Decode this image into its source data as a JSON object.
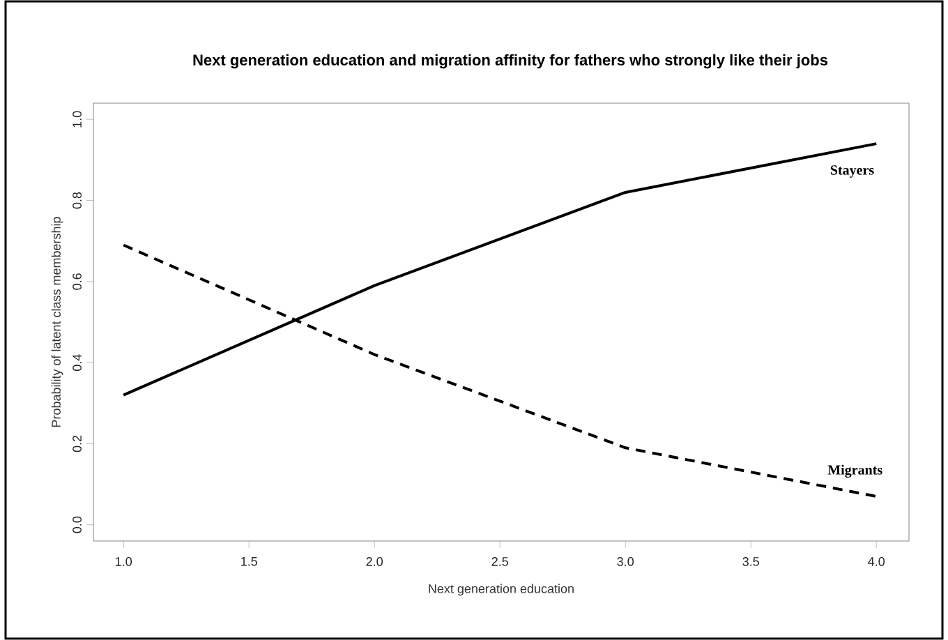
{
  "chart_data": {
    "type": "line",
    "title": "Next generation education and migration affinity for fathers who strongly like their jobs",
    "xlabel": "Next generation education",
    "ylabel": "Probability of latent class membership",
    "x": [
      1,
      2,
      3,
      4
    ],
    "series": [
      {
        "name": "Stayers",
        "color": "#000000",
        "line_style": "solid",
        "values": [
          0.32,
          0.59,
          0.82,
          0.94
        ]
      },
      {
        "name": "Migrants",
        "color": "#000000",
        "line_style": "dashed",
        "values": [
          0.69,
          0.42,
          0.19,
          0.07
        ]
      }
    ],
    "xlim": [
      0.88,
      4.13
    ],
    "ylim": [
      -0.04,
      1.04
    ],
    "xticks": [
      {
        "value": 1,
        "label": "1.0"
      },
      {
        "value": 1.5,
        "label": "1.5"
      },
      {
        "value": 2,
        "label": "2.0"
      },
      {
        "value": 2.5,
        "label": "2.5"
      },
      {
        "value": 3,
        "label": "3.0"
      },
      {
        "value": 3.5,
        "label": "3.5"
      },
      {
        "value": 4,
        "label": "4.0"
      }
    ],
    "yticks": [
      {
        "value": 0,
        "label": "0.0"
      },
      {
        "value": 0.2,
        "label": "0.2"
      },
      {
        "value": 0.4,
        "label": "0.4"
      },
      {
        "value": 0.6,
        "label": "0.6"
      },
      {
        "value": 0.8,
        "label": "0.8"
      },
      {
        "value": 1,
        "label": "1.0"
      }
    ],
    "grid": false,
    "legend": false,
    "marker": "none"
  }
}
